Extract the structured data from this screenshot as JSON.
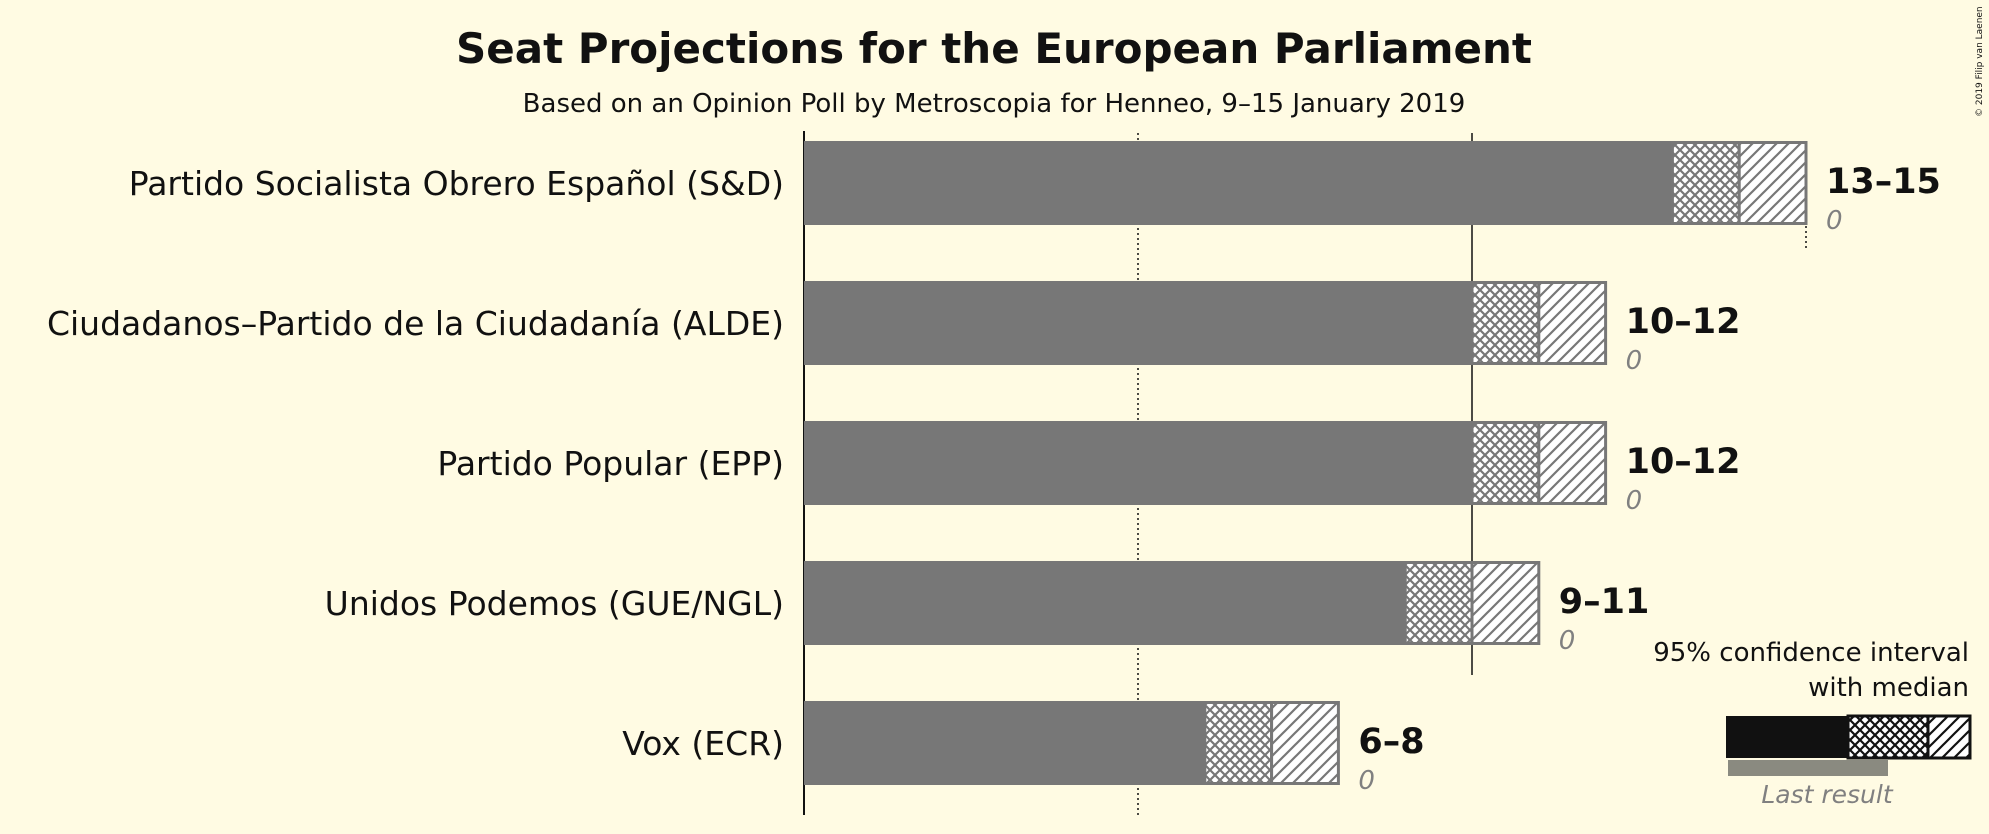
{
  "title": "Seat Projections for the European Parliament",
  "subtitle": "Based on an Opinion Poll by Metroscopia for Henneo, 9–15 January 2019",
  "copyright": "© 2019 Filip van Laenen",
  "colors": {
    "background": "#fffbe3",
    "bar": "#777777",
    "legend_bar": "#111111",
    "last_result": "#8a8a80",
    "text": "#111111",
    "last_text": "#808080"
  },
  "legend": {
    "line1": "95% confidence interval",
    "line2": "with median",
    "last_result": "Last result"
  },
  "chart_data": {
    "type": "bar",
    "orientation": "horizontal",
    "title": "Seat Projections for the European Parliament",
    "subtitle": "Based on an Opinion Poll by Metroscopia for Henneo, 9–15 January 2019",
    "xlim": [
      0,
      15
    ],
    "gridlines": [
      {
        "value": 5,
        "style": "dotted"
      },
      {
        "value": 10,
        "style": "solid"
      },
      {
        "value": 15,
        "style": "dotted"
      }
    ],
    "categories": [
      "Partido Socialista Obrero Español (S&D)",
      "Ciudadanos–Partido de la Ciudadanía (ALDE)",
      "Partido Popular (EPP)",
      "Unidos Podemos (GUE/NGL)",
      "Vox (ECR)"
    ],
    "series": [
      {
        "name": "95% confidence interval",
        "low": [
          13,
          10,
          10,
          9,
          6
        ],
        "high": [
          15,
          12,
          12,
          11,
          8
        ]
      },
      {
        "name": "median",
        "values": [
          14,
          11,
          11,
          10,
          7
        ]
      },
      {
        "name": "Last result",
        "values": [
          0,
          0,
          0,
          0,
          0
        ]
      }
    ],
    "range_labels": [
      "13–15",
      "10–12",
      "10–12",
      "9–11",
      "6–8"
    ],
    "last_labels": [
      "0",
      "0",
      "0",
      "0",
      "0"
    ]
  }
}
